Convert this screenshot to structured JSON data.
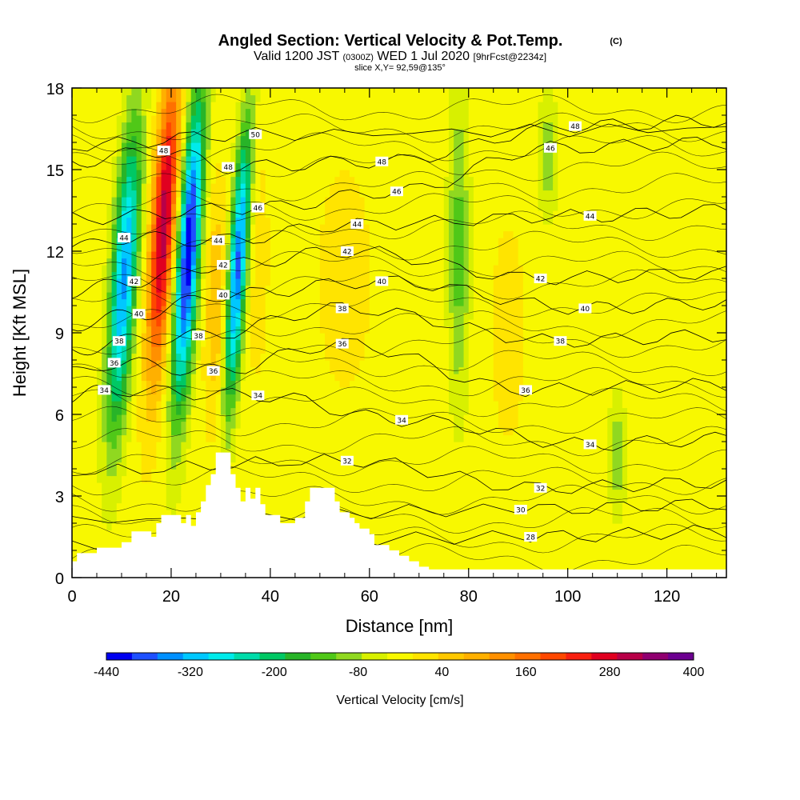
{
  "header": {
    "title": "Angled Section: Vertical Velocity & Pot.Temp.",
    "title_mark": "(C)",
    "valid_prefix": "Valid 1200 JST",
    "valid_utc": "(0300Z)",
    "valid_day": "WED 1 Jul 2020",
    "valid_fcst": "[9hrFcst@2234z]",
    "slice": "slice X,Y= 92,59@135°"
  },
  "chart_data": {
    "type": "heatmap",
    "title": "Angled Section: Vertical Velocity & Pot.Temp.",
    "xlabel": "Distance [nm]",
    "ylabel": "Height [Kft MSL]",
    "xlim": [
      0,
      132
    ],
    "ylim": [
      0,
      18
    ],
    "x_ticks": [
      0,
      20,
      40,
      60,
      80,
      100,
      120
    ],
    "y_ticks": [
      0,
      3,
      6,
      9,
      12,
      15,
      18
    ],
    "colorbar": {
      "label": "Vertical Velocity [cm/s]",
      "tick_labels": [
        "-440",
        "-320",
        "-200",
        "-80",
        "40",
        "160",
        "280",
        "400"
      ],
      "tick_values": [
        -440,
        -320,
        -200,
        -80,
        40,
        160,
        280,
        400
      ],
      "range": [
        -440,
        400
      ],
      "step": 40,
      "colors": [
        "#0000f0",
        "#1e50ff",
        "#0090ff",
        "#00c8ff",
        "#00ebeb",
        "#00dcaa",
        "#00c864",
        "#28b428",
        "#50c818",
        "#90d820",
        "#d8f000",
        "#f8f800",
        "#ffe400",
        "#ffc800",
        "#ffb000",
        "#ff9000",
        "#ff7000",
        "#ff4800",
        "#f82010",
        "#e00020",
        "#b80048",
        "#900070",
        "#6c0090"
      ]
    },
    "vertical_velocity_features": [
      {
        "x": 10.5,
        "y": 11.0,
        "value": -330
      },
      {
        "x": 18.5,
        "y": 13.0,
        "value": 390
      },
      {
        "x": 23.5,
        "y": 12.0,
        "value": -440
      },
      {
        "x": 33.5,
        "y": 11.5,
        "value": -380
      },
      {
        "x": 29.0,
        "y": 10.0,
        "value": 120
      },
      {
        "x": 37.0,
        "y": 12.0,
        "value": 60
      },
      {
        "x": 55.0,
        "y": 11.0,
        "value": 60
      },
      {
        "x": 78.0,
        "y": 12.0,
        "value": -100
      },
      {
        "x": 88.0,
        "y": 9.0,
        "value": 60
      },
      {
        "x": 96.0,
        "y": 15.5,
        "value": -70
      },
      {
        "x": 110.0,
        "y": 4.5,
        "value": -70
      }
    ],
    "potential_temperature_contours": [
      {
        "label": "28",
        "position": [
          92.5,
          1.5
        ]
      },
      {
        "label": "30",
        "position": [
          90.5,
          2.5
        ]
      },
      {
        "label": "32",
        "position": [
          55.5,
          4.3
        ]
      },
      {
        "label": "32",
        "position": [
          94.5,
          3.3
        ]
      },
      {
        "label": "34",
        "position": [
          6.5,
          6.9
        ]
      },
      {
        "label": "34",
        "position": [
          37.5,
          6.7
        ]
      },
      {
        "label": "34",
        "position": [
          66.5,
          5.8
        ]
      },
      {
        "label": "34",
        "position": [
          104.5,
          4.9
        ]
      },
      {
        "label": "36",
        "position": [
          8.5,
          7.9
        ]
      },
      {
        "label": "36",
        "position": [
          28.5,
          7.6
        ]
      },
      {
        "label": "36",
        "position": [
          54.5,
          8.6
        ]
      },
      {
        "label": "36",
        "position": [
          91.5,
          6.9
        ]
      },
      {
        "label": "38",
        "position": [
          9.5,
          8.7
        ]
      },
      {
        "label": "38",
        "position": [
          25.5,
          8.9
        ]
      },
      {
        "label": "38",
        "position": [
          54.5,
          9.9
        ]
      },
      {
        "label": "38",
        "position": [
          98.5,
          8.7
        ]
      },
      {
        "label": "40",
        "position": [
          13.5,
          9.7
        ]
      },
      {
        "label": "40",
        "position": [
          30.5,
          10.4
        ]
      },
      {
        "label": "40",
        "position": [
          62.5,
          10.9
        ]
      },
      {
        "label": "40",
        "position": [
          103.5,
          9.9
        ]
      },
      {
        "label": "42",
        "position": [
          12.5,
          10.9
        ]
      },
      {
        "label": "42",
        "position": [
          30.5,
          11.5
        ]
      },
      {
        "label": "42",
        "position": [
          55.5,
          12.0
        ]
      },
      {
        "label": "42",
        "position": [
          94.5,
          11.0
        ]
      },
      {
        "label": "44",
        "position": [
          10.5,
          12.5
        ]
      },
      {
        "label": "44",
        "position": [
          29.5,
          12.4
        ]
      },
      {
        "label": "44",
        "position": [
          57.5,
          13.0
        ]
      },
      {
        "label": "44",
        "position": [
          104.5,
          13.3
        ]
      },
      {
        "label": "46",
        "position": [
          37.5,
          13.6
        ]
      },
      {
        "label": "46",
        "position": [
          65.5,
          14.2
        ]
      },
      {
        "label": "46",
        "position": [
          96.5,
          15.8
        ]
      },
      {
        "label": "48",
        "position": [
          18.5,
          15.7
        ]
      },
      {
        "label": "48",
        "position": [
          31.5,
          15.1
        ]
      },
      {
        "label": "48",
        "position": [
          62.5,
          15.3
        ]
      },
      {
        "label": "48",
        "position": [
          101.5,
          16.6
        ]
      },
      {
        "label": "50",
        "position": [
          37.0,
          16.3
        ]
      }
    ],
    "terrain_heights": [
      [
        0,
        0.6
      ],
      [
        1,
        0.9
      ],
      [
        5,
        1.1
      ],
      [
        10,
        1.3
      ],
      [
        12,
        1.7
      ],
      [
        16,
        1.5
      ],
      [
        17,
        2.0
      ],
      [
        18,
        2.3
      ],
      [
        22,
        2.0
      ],
      [
        23,
        2.3
      ],
      [
        24,
        1.9
      ],
      [
        25,
        2.4
      ],
      [
        26,
        2.8
      ],
      [
        27,
        3.4
      ],
      [
        28,
        3.8
      ],
      [
        29,
        4.6
      ],
      [
        31,
        4.6
      ],
      [
        32,
        3.8
      ],
      [
        33,
        3.3
      ],
      [
        34,
        2.8
      ],
      [
        35,
        3.3
      ],
      [
        36,
        2.9
      ],
      [
        37,
        3.3
      ],
      [
        38,
        2.7
      ],
      [
        39,
        2.3
      ],
      [
        42,
        2.0
      ],
      [
        45,
        2.2
      ],
      [
        47,
        2.8
      ],
      [
        48,
        3.3
      ],
      [
        51,
        3.3
      ],
      [
        53,
        2.8
      ],
      [
        54,
        2.4
      ],
      [
        56,
        2.2
      ],
      [
        57,
        2.0
      ],
      [
        58,
        1.8
      ],
      [
        60,
        1.6
      ],
      [
        61,
        1.2
      ],
      [
        64,
        1.0
      ],
      [
        66,
        0.8
      ],
      [
        68,
        0.6
      ],
      [
        70,
        0.4
      ],
      [
        72,
        0.3
      ],
      [
        132,
        0.3
      ]
    ]
  },
  "icons": {
    "degree": "degree-glyph"
  }
}
